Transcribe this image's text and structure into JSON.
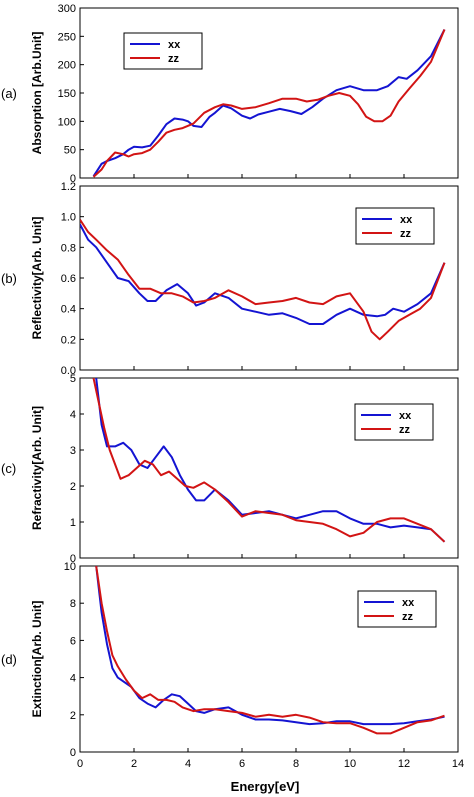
{
  "figure": {
    "xlabel": "Energy[eV]"
  },
  "chart_data": [
    {
      "type": "line",
      "panel_label": "(a)",
      "ylabel": "Absorption [Arb.Unit]",
      "xlim": [
        0,
        14
      ],
      "ylim": [
        0,
        300
      ],
      "xticks": [
        "0",
        "2",
        "4",
        "6",
        "8",
        "10",
        "12",
        "14"
      ],
      "yticks": [
        "0",
        "50",
        "100",
        "150",
        "200",
        "250",
        "300"
      ],
      "legend_position": "top-left",
      "series": [
        {
          "name": "xx",
          "color": "#1414d2",
          "x": [
            0.5,
            0.8,
            1.0,
            1.3,
            1.6,
            1.8,
            2.0,
            2.3,
            2.6,
            2.9,
            3.2,
            3.5,
            3.8,
            4.0,
            4.2,
            4.5,
            4.8,
            5.0,
            5.3,
            5.6,
            6.0,
            6.3,
            6.6,
            7.0,
            7.4,
            7.8,
            8.2,
            8.6,
            9.0,
            9.5,
            10.0,
            10.5,
            11.0,
            11.4,
            11.8,
            12.1,
            12.5,
            13.0,
            13.5
          ],
          "y": [
            3,
            25,
            30,
            35,
            42,
            50,
            55,
            54,
            57,
            75,
            95,
            105,
            103,
            100,
            92,
            90,
            108,
            115,
            128,
            123,
            110,
            105,
            112,
            117,
            122,
            118,
            113,
            125,
            140,
            155,
            162,
            155,
            155,
            162,
            178,
            175,
            190,
            215,
            262
          ]
        },
        {
          "name": "zz",
          "color": "#d21414",
          "x": [
            0.5,
            0.8,
            1.0,
            1.3,
            1.6,
            1.8,
            2.0,
            2.3,
            2.6,
            2.9,
            3.2,
            3.5,
            3.8,
            4.2,
            4.6,
            5.0,
            5.3,
            5.6,
            6.0,
            6.5,
            7.0,
            7.5,
            8.0,
            8.4,
            8.8,
            9.2,
            9.6,
            10.0,
            10.3,
            10.6,
            10.9,
            11.2,
            11.5,
            11.8,
            12.2,
            12.6,
            13.0,
            13.5
          ],
          "y": [
            2,
            15,
            30,
            45,
            42,
            38,
            42,
            44,
            50,
            64,
            80,
            85,
            88,
            96,
            115,
            125,
            130,
            128,
            122,
            125,
            132,
            140,
            140,
            135,
            138,
            145,
            150,
            145,
            130,
            108,
            100,
            100,
            110,
            135,
            158,
            180,
            205,
            262
          ]
        }
      ]
    },
    {
      "type": "line",
      "panel_label": "(b)",
      "ylabel": "Reflectivity[Arb. Unit]",
      "xlim": [
        0,
        14
      ],
      "ylim": [
        0,
        1.2
      ],
      "xticks": [],
      "yticks": [
        "0.0",
        "0.2",
        "0.4",
        "0.6",
        "0.8",
        "1.0",
        "1.2"
      ],
      "legend_position": "top-right",
      "series": [
        {
          "name": "xx",
          "color": "#1414d2",
          "x": [
            0.0,
            0.3,
            0.6,
            1.0,
            1.4,
            1.8,
            2.2,
            2.5,
            2.8,
            3.2,
            3.6,
            4.0,
            4.3,
            4.6,
            5.0,
            5.5,
            6.0,
            6.5,
            7.0,
            7.5,
            8.0,
            8.5,
            9.0,
            9.5,
            10.0,
            10.5,
            11.0,
            11.3,
            11.6,
            12.0,
            12.5,
            13.0,
            13.5
          ],
          "y": [
            0.95,
            0.85,
            0.8,
            0.7,
            0.6,
            0.58,
            0.5,
            0.45,
            0.45,
            0.52,
            0.56,
            0.5,
            0.42,
            0.44,
            0.5,
            0.47,
            0.4,
            0.38,
            0.36,
            0.37,
            0.34,
            0.3,
            0.3,
            0.36,
            0.4,
            0.36,
            0.35,
            0.36,
            0.4,
            0.38,
            0.43,
            0.5,
            0.7
          ]
        },
        {
          "name": "zz",
          "color": "#d21414",
          "x": [
            0.0,
            0.3,
            0.6,
            1.0,
            1.4,
            1.8,
            2.2,
            2.6,
            3.0,
            3.4,
            3.8,
            4.2,
            4.6,
            5.0,
            5.5,
            6.0,
            6.5,
            7.0,
            7.5,
            8.0,
            8.5,
            9.0,
            9.5,
            10.0,
            10.5,
            10.8,
            11.1,
            11.4,
            11.8,
            12.2,
            12.6,
            13.0,
            13.5
          ],
          "y": [
            0.98,
            0.9,
            0.85,
            0.78,
            0.72,
            0.62,
            0.53,
            0.53,
            0.5,
            0.5,
            0.48,
            0.44,
            0.45,
            0.47,
            0.52,
            0.48,
            0.43,
            0.44,
            0.45,
            0.47,
            0.44,
            0.43,
            0.48,
            0.5,
            0.38,
            0.25,
            0.2,
            0.25,
            0.32,
            0.36,
            0.4,
            0.47,
            0.7
          ]
        }
      ]
    },
    {
      "type": "line",
      "panel_label": "(c)",
      "ylabel": "Refractivity[Arb. Unit]",
      "xlim": [
        0,
        14
      ],
      "ylim": [
        0,
        5
      ],
      "xticks": [],
      "yticks": [
        "0",
        "1",
        "2",
        "3",
        "4",
        "5"
      ],
      "legend_position": "top-right",
      "series": [
        {
          "name": "xx",
          "color": "#1414d2",
          "x": [
            0.6,
            0.8,
            1.0,
            1.3,
            1.6,
            1.9,
            2.2,
            2.5,
            2.8,
            3.1,
            3.4,
            3.7,
            4.0,
            4.3,
            4.6,
            5.0,
            5.5,
            6.0,
            6.5,
            7.0,
            7.5,
            8.0,
            8.5,
            9.0,
            9.5,
            10.0,
            10.5,
            11.0,
            11.5,
            12.0,
            12.5,
            13.0,
            13.5
          ],
          "y": [
            5.0,
            3.7,
            3.1,
            3.1,
            3.2,
            3.0,
            2.6,
            2.5,
            2.8,
            3.1,
            2.8,
            2.3,
            1.9,
            1.6,
            1.6,
            1.9,
            1.6,
            1.2,
            1.25,
            1.3,
            1.2,
            1.1,
            1.2,
            1.3,
            1.3,
            1.1,
            0.95,
            0.95,
            0.85,
            0.9,
            0.85,
            0.8,
            0.45
          ]
        },
        {
          "name": "zz",
          "color": "#d21414",
          "x": [
            0.5,
            0.7,
            0.9,
            1.1,
            1.3,
            1.5,
            1.8,
            2.1,
            2.4,
            2.7,
            3.0,
            3.3,
            3.6,
            3.9,
            4.2,
            4.6,
            5.0,
            5.5,
            6.0,
            6.5,
            7.0,
            7.5,
            8.0,
            8.5,
            9.0,
            9.5,
            10.0,
            10.5,
            11.0,
            11.5,
            12.0,
            12.5,
            13.0,
            13.5
          ],
          "y": [
            5.0,
            4.3,
            3.6,
            3.0,
            2.6,
            2.2,
            2.3,
            2.5,
            2.7,
            2.6,
            2.3,
            2.4,
            2.2,
            2.0,
            1.95,
            2.1,
            1.9,
            1.55,
            1.15,
            1.3,
            1.25,
            1.2,
            1.05,
            1.0,
            0.95,
            0.8,
            0.6,
            0.7,
            1.0,
            1.1,
            1.1,
            0.95,
            0.8,
            0.45
          ]
        }
      ]
    },
    {
      "type": "line",
      "panel_label": "(d)",
      "ylabel": "Extinction[Arb. Unit]",
      "xlim": [
        0,
        14
      ],
      "ylim": [
        0,
        10
      ],
      "xticks": [
        "0",
        "2",
        "4",
        "6",
        "8",
        "10",
        "12",
        "14"
      ],
      "yticks": [
        "0",
        "2",
        "4",
        "6",
        "8",
        "10"
      ],
      "legend_position": "top-right",
      "series": [
        {
          "name": "xx",
          "color": "#1414d2",
          "x": [
            0.6,
            0.8,
            1.0,
            1.2,
            1.4,
            1.6,
            1.9,
            2.2,
            2.5,
            2.8,
            3.1,
            3.4,
            3.7,
            4.0,
            4.3,
            4.6,
            5.0,
            5.5,
            6.0,
            6.5,
            7.0,
            7.5,
            8.0,
            8.5,
            9.0,
            9.5,
            10.0,
            10.5,
            11.0,
            11.5,
            12.0,
            12.5,
            13.0,
            13.5
          ],
          "y": [
            10.0,
            7.5,
            5.8,
            4.5,
            4.0,
            3.8,
            3.5,
            2.9,
            2.6,
            2.4,
            2.8,
            3.1,
            3.0,
            2.6,
            2.2,
            2.1,
            2.3,
            2.4,
            2.0,
            1.75,
            1.75,
            1.7,
            1.6,
            1.5,
            1.55,
            1.65,
            1.65,
            1.5,
            1.5,
            1.5,
            1.55,
            1.65,
            1.75,
            1.9
          ]
        },
        {
          "name": "zz",
          "color": "#d21414",
          "x": [
            0.6,
            0.8,
            1.0,
            1.2,
            1.4,
            1.7,
            2.0,
            2.3,
            2.6,
            2.9,
            3.2,
            3.5,
            3.8,
            4.2,
            4.6,
            5.0,
            5.5,
            6.0,
            6.5,
            7.0,
            7.5,
            8.0,
            8.5,
            9.0,
            9.5,
            10.0,
            10.5,
            11.0,
            11.5,
            12.0,
            12.5,
            13.0,
            13.5
          ],
          "y": [
            10.0,
            8.0,
            6.5,
            5.2,
            4.6,
            3.9,
            3.3,
            2.9,
            3.1,
            2.8,
            2.8,
            2.7,
            2.4,
            2.2,
            2.3,
            2.3,
            2.2,
            2.1,
            1.9,
            2.0,
            1.9,
            2.0,
            1.85,
            1.6,
            1.55,
            1.55,
            1.3,
            1.0,
            1.0,
            1.3,
            1.6,
            1.7,
            1.95
          ]
        }
      ]
    }
  ]
}
